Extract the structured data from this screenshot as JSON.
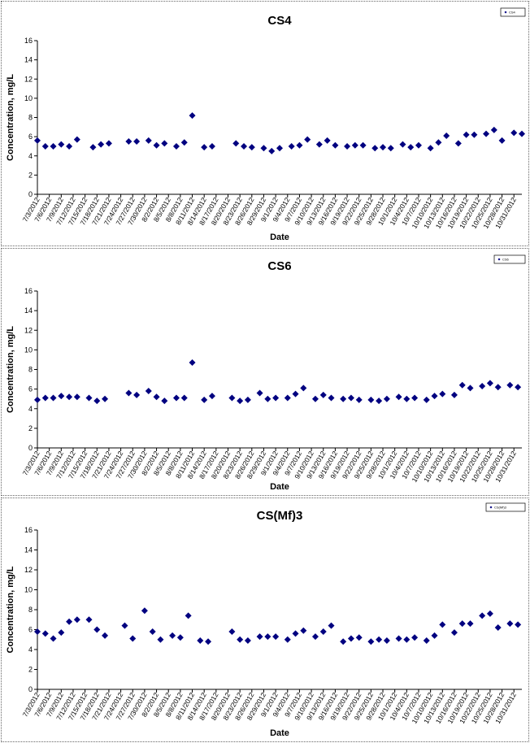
{
  "colors": {
    "marker": "#000080",
    "axis": "#000000",
    "border": "#666666"
  },
  "chart_data": [
    {
      "type": "scatter",
      "title": "CS4",
      "xlabel": "Date",
      "ylabel": "Concentration, mg/L",
      "ylim": [
        0,
        16
      ],
      "yticks": [
        0,
        2,
        4,
        6,
        8,
        10,
        12,
        14,
        16
      ],
      "xlim": [
        "2012-07-03",
        "2012-11-02"
      ],
      "xticks": [
        "7/3/2012",
        "7/6/2012",
        "7/9/2012",
        "7/12/2012",
        "7/15/2012",
        "7/18/2012",
        "7/21/2012",
        "7/24/2012",
        "7/27/2012",
        "7/30/2012",
        "8/2/2012",
        "8/5/2012",
        "8/8/2012",
        "8/11/2012",
        "8/14/2012",
        "8/17/2012",
        "8/20/2012",
        "8/23/2012",
        "8/26/2012",
        "8/29/2012",
        "9/1/2012",
        "9/4/2012",
        "9/7/2012",
        "9/10/2012",
        "9/13/2012",
        "9/16/2012",
        "9/19/2012",
        "9/22/2012",
        "9/25/2012",
        "9/28/2012",
        "10/1/2012",
        "10/4/2012",
        "10/7/2012",
        "10/10/2012",
        "10/13/2012",
        "10/16/2012",
        "10/19/2012",
        "10/22/2012",
        "10/25/2012",
        "10/28/2012",
        "10/31/2012"
      ],
      "grid": false,
      "legend": {
        "position": "top-right",
        "entries": [
          "CS4"
        ]
      },
      "series": [
        {
          "name": "CS4",
          "x": [
            "2012-07-03",
            "2012-07-05",
            "2012-07-07",
            "2012-07-09",
            "2012-07-11",
            "2012-07-13",
            "2012-07-17",
            "2012-07-19",
            "2012-07-21",
            "2012-07-26",
            "2012-07-28",
            "2012-07-31",
            "2012-08-02",
            "2012-08-04",
            "2012-08-07",
            "2012-08-09",
            "2012-08-11",
            "2012-08-14",
            "2012-08-16",
            "2012-08-22",
            "2012-08-24",
            "2012-08-26",
            "2012-08-29",
            "2012-08-31",
            "2012-09-02",
            "2012-09-05",
            "2012-09-07",
            "2012-09-09",
            "2012-09-12",
            "2012-09-14",
            "2012-09-16",
            "2012-09-19",
            "2012-09-21",
            "2012-09-23",
            "2012-09-26",
            "2012-09-28",
            "2012-09-30",
            "2012-10-03",
            "2012-10-05",
            "2012-10-07",
            "2012-10-10",
            "2012-10-12",
            "2012-10-14",
            "2012-10-17",
            "2012-10-19",
            "2012-10-21",
            "2012-10-24",
            "2012-10-26",
            "2012-10-28",
            "2012-10-31",
            "2012-11-02"
          ],
          "y": [
            5.6,
            5.0,
            5.0,
            5.2,
            5.0,
            5.7,
            4.9,
            5.2,
            5.3,
            5.5,
            5.5,
            5.6,
            5.1,
            5.3,
            5.0,
            5.4,
            8.2,
            4.9,
            5.0,
            5.3,
            5.0,
            4.9,
            4.8,
            4.5,
            4.8,
            5.0,
            5.1,
            5.7,
            5.2,
            5.6,
            5.1,
            5.0,
            5.1,
            5.1,
            4.8,
            4.9,
            4.8,
            5.2,
            4.9,
            5.1,
            4.8,
            5.4,
            6.1,
            5.3,
            6.2,
            6.2,
            6.3,
            6.7,
            5.6,
            6.4,
            6.3
          ]
        }
      ]
    },
    {
      "type": "scatter",
      "title": "CS6",
      "xlabel": "Date",
      "ylabel": "Concentration, mg/L",
      "ylim": [
        0,
        16
      ],
      "yticks": [
        0,
        2,
        4,
        6,
        8,
        10,
        12,
        14,
        16
      ],
      "xlim": [
        "2012-07-03",
        "2012-11-02"
      ],
      "xticks": [
        "7/3/2012",
        "7/6/2012",
        "7/9/2012",
        "7/12/2012",
        "7/15/2012",
        "7/18/2012",
        "7/21/2012",
        "7/24/2012",
        "7/27/2012",
        "7/30/2012",
        "8/2/2012",
        "8/5/2012",
        "8/8/2012",
        "8/11/2012",
        "8/14/2012",
        "8/17/2012",
        "8/20/2012",
        "8/23/2012",
        "8/26/2012",
        "8/29/2012",
        "9/1/2012",
        "9/4/2012",
        "9/7/2012",
        "9/10/2012",
        "9/13/2012",
        "9/16/2012",
        "9/19/2012",
        "9/22/2012",
        "9/25/2012",
        "9/28/2012",
        "10/1/2012",
        "10/4/2012",
        "10/7/2012",
        "10/10/2012",
        "10/13/2012",
        "10/16/2012",
        "10/19/2012",
        "10/22/2012",
        "10/25/2012",
        "10/28/2012",
        "10/31/2012"
      ],
      "grid": false,
      "legend": {
        "position": "top-right",
        "entries": [
          "CS6"
        ]
      },
      "series": [
        {
          "name": "CS6",
          "x": [
            "2012-07-03",
            "2012-07-05",
            "2012-07-07",
            "2012-07-09",
            "2012-07-11",
            "2012-07-13",
            "2012-07-16",
            "2012-07-18",
            "2012-07-20",
            "2012-07-26",
            "2012-07-28",
            "2012-07-31",
            "2012-08-02",
            "2012-08-04",
            "2012-08-07",
            "2012-08-09",
            "2012-08-11",
            "2012-08-14",
            "2012-08-16",
            "2012-08-21",
            "2012-08-23",
            "2012-08-25",
            "2012-08-28",
            "2012-08-30",
            "2012-09-01",
            "2012-09-04",
            "2012-09-06",
            "2012-09-08",
            "2012-09-11",
            "2012-09-13",
            "2012-09-15",
            "2012-09-18",
            "2012-09-20",
            "2012-09-22",
            "2012-09-25",
            "2012-09-27",
            "2012-09-29",
            "2012-10-02",
            "2012-10-04",
            "2012-10-06",
            "2012-10-09",
            "2012-10-11",
            "2012-10-13",
            "2012-10-16",
            "2012-10-18",
            "2012-10-20",
            "2012-10-23",
            "2012-10-25",
            "2012-10-27",
            "2012-10-30",
            "2012-11-01"
          ],
          "y": [
            4.9,
            5.1,
            5.1,
            5.3,
            5.2,
            5.2,
            5.1,
            4.8,
            5.0,
            5.6,
            5.4,
            5.8,
            5.2,
            4.8,
            5.1,
            5.1,
            8.7,
            4.9,
            5.3,
            5.1,
            4.8,
            4.9,
            5.6,
            5.0,
            5.1,
            5.1,
            5.5,
            6.1,
            5.0,
            5.4,
            5.1,
            5.0,
            5.1,
            4.9,
            4.9,
            4.8,
            5.0,
            5.2,
            5.0,
            5.1,
            4.9,
            5.3,
            5.5,
            5.4,
            6.4,
            6.1,
            6.3,
            6.6,
            6.2,
            6.4,
            6.2
          ]
        }
      ]
    },
    {
      "type": "scatter",
      "title": "CS(Mf)3",
      "xlabel": "Date",
      "ylabel": "Concentration, mg/L",
      "ylim": [
        0,
        16
      ],
      "yticks": [
        0,
        2,
        4,
        6,
        8,
        10,
        12,
        14,
        16
      ],
      "xlim": [
        "2012-07-03",
        "2012-11-02"
      ],
      "xticks": [
        "7/3/2012",
        "7/6/2012",
        "7/9/2012",
        "7/12/2012",
        "7/15/2012",
        "7/18/2012",
        "7/21/2012",
        "7/24/2012",
        "7/27/2012",
        "7/30/2012",
        "8/2/2012",
        "8/5/2012",
        "8/8/2012",
        "8/11/2012",
        "8/14/2012",
        "8/17/2012",
        "8/20/2012",
        "8/23/2012",
        "8/26/2012",
        "8/29/2012",
        "9/1/2012",
        "9/4/2012",
        "9/7/2012",
        "9/10/2012",
        "9/13/2012",
        "9/16/2012",
        "9/19/2012",
        "9/22/2012",
        "9/25/2012",
        "9/28/2012",
        "10/1/2012",
        "10/4/2012",
        "10/7/2012",
        "10/10/2012",
        "10/13/2012",
        "10/16/2012",
        "10/19/2012",
        "10/22/2012",
        "10/25/2012",
        "10/28/2012",
        "10/31/2012"
      ],
      "grid": false,
      "legend": {
        "position": "top-right",
        "entries": [
          "CS(Mf)3"
        ]
      },
      "series": [
        {
          "name": "CS(Mf)3",
          "x": [
            "2012-07-03",
            "2012-07-05",
            "2012-07-07",
            "2012-07-09",
            "2012-07-11",
            "2012-07-13",
            "2012-07-16",
            "2012-07-18",
            "2012-07-20",
            "2012-07-25",
            "2012-07-27",
            "2012-07-30",
            "2012-08-01",
            "2012-08-03",
            "2012-08-06",
            "2012-08-08",
            "2012-08-10",
            "2012-08-13",
            "2012-08-15",
            "2012-08-21",
            "2012-08-23",
            "2012-08-25",
            "2012-08-28",
            "2012-08-30",
            "2012-09-01",
            "2012-09-04",
            "2012-09-06",
            "2012-09-08",
            "2012-09-11",
            "2012-09-13",
            "2012-09-15",
            "2012-09-18",
            "2012-09-20",
            "2012-09-22",
            "2012-09-25",
            "2012-09-27",
            "2012-09-29",
            "2012-10-02",
            "2012-10-04",
            "2012-10-06",
            "2012-10-09",
            "2012-10-11",
            "2012-10-13",
            "2012-10-16",
            "2012-10-18",
            "2012-10-20",
            "2012-10-23",
            "2012-10-25",
            "2012-10-27",
            "2012-10-30",
            "2012-11-01"
          ],
          "y": [
            5.8,
            5.6,
            5.1,
            5.7,
            6.8,
            7.0,
            7.0,
            6.0,
            5.4,
            6.4,
            5.1,
            7.9,
            5.8,
            5.0,
            5.4,
            5.2,
            7.4,
            4.9,
            4.8,
            5.8,
            5.0,
            4.9,
            5.3,
            5.3,
            5.3,
            5.0,
            5.6,
            5.9,
            5.3,
            5.8,
            6.4,
            4.8,
            5.1,
            5.2,
            4.8,
            5.0,
            4.9,
            5.1,
            5.0,
            5.2,
            4.9,
            5.4,
            6.5,
            5.7,
            6.6,
            6.6,
            7.4,
            7.6,
            6.2,
            6.6,
            6.5
          ]
        }
      ]
    }
  ]
}
